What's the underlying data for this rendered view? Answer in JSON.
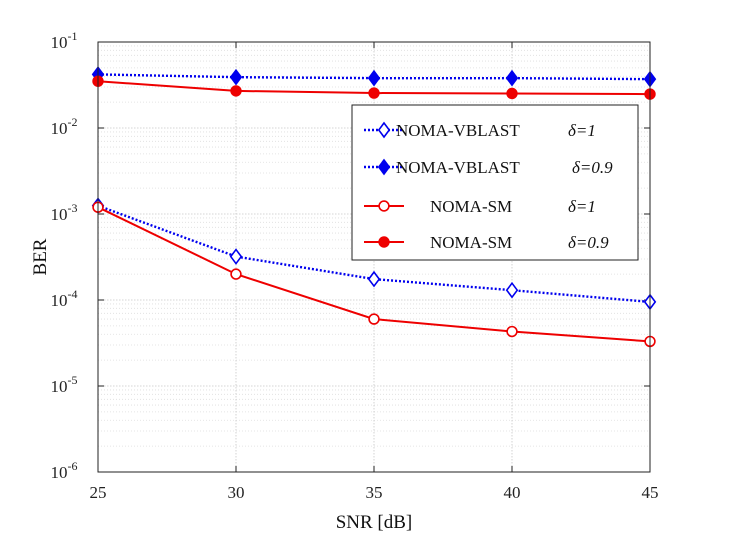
{
  "chart_data": {
    "type": "line",
    "xlabel": "SNR [dB]",
    "ylabel": "BER",
    "x": [
      25,
      30,
      35,
      40,
      45
    ],
    "xlim": [
      25,
      45
    ],
    "xticks": [
      "25",
      "30",
      "35",
      "40",
      "45"
    ],
    "yscale": "log",
    "ylim": [
      1e-06,
      0.1
    ],
    "yticks": [
      {
        "base": "10",
        "exp": "-6"
      },
      {
        "base": "10",
        "exp": "-5"
      },
      {
        "base": "10",
        "exp": "-4"
      },
      {
        "base": "10",
        "exp": "-3"
      },
      {
        "base": "10",
        "exp": "-2"
      },
      {
        "base": "10",
        "exp": "-1"
      }
    ],
    "grid": true,
    "legend_position": "upper-right",
    "series": [
      {
        "name": "NOMA-VBLAST",
        "delta": "δ=1",
        "color": "#0000ee",
        "linestyle": "dotted",
        "marker": "diamond-open",
        "values": [
          0.00125,
          0.00032,
          0.000175,
          0.00013,
          9.5e-05
        ]
      },
      {
        "name": "NOMA-VBLAST",
        "delta": "δ=0.9",
        "color": "#0000ee",
        "linestyle": "dotted",
        "marker": "diamond-filled",
        "values": [
          0.042,
          0.039,
          0.038,
          0.038,
          0.037
        ]
      },
      {
        "name": "NOMA-SM",
        "delta": "δ=1",
        "color": "#ee0000",
        "linestyle": "solid",
        "marker": "circle-open",
        "values": [
          0.0012,
          0.0002,
          6e-05,
          4.3e-05,
          3.3e-05
        ]
      },
      {
        "name": "NOMA-SM",
        "delta": "δ=0.9",
        "color": "#ee0000",
        "linestyle": "solid",
        "marker": "circle-filled",
        "values": [
          0.035,
          0.027,
          0.0255,
          0.0252,
          0.0248
        ]
      }
    ]
  }
}
